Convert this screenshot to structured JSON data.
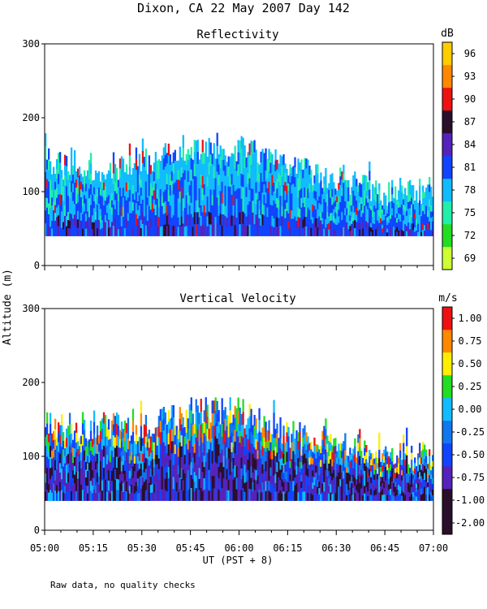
{
  "title": "Dixon, CA 22 May 2007  Day 142",
  "note": "Raw data, no quality checks",
  "xlabel": "UT  (PST + 8)",
  "ylabel": "Altitude (m)",
  "colors": {
    "reflectivity_scale": [
      "#ccff33",
      "#22dd22",
      "#22eeaa",
      "#11bbff",
      "#1144ff",
      "#5522bb",
      "#2a0e2a",
      "#ee1111",
      "#ff8800",
      "#ffcc00"
    ],
    "velocity_scale": [
      "#2a0e2a",
      "#5522bb",
      "#1144ff",
      "#1177ee",
      "#11bbff",
      "#22dd22",
      "#ffee00",
      "#ff8800",
      "#ee1111"
    ]
  },
  "chart_data": [
    {
      "type": "heatmap",
      "title": "Reflectivity",
      "colorbar_unit": "dB",
      "colorbar_ticks": [
        "69",
        "72",
        "75",
        "78",
        "81",
        "84",
        "87",
        "90",
        "93",
        "96"
      ],
      "x_ticks": [
        "05:00",
        "05:15",
        "05:30",
        "05:45",
        "06:00",
        "06:15",
        "06:30",
        "06:45",
        "07:00"
      ],
      "x_range_minutes": [
        0,
        120
      ],
      "y_ticks": [
        0,
        100,
        200,
        300
      ],
      "ylim": [
        0,
        300
      ],
      "data_bottom_m": 40,
      "echo_top_m": [
        {
          "t": 0,
          "top": 160
        },
        {
          "t": 15,
          "top": 150
        },
        {
          "t": 30,
          "top": 160
        },
        {
          "t": 45,
          "top": 180
        },
        {
          "t": 60,
          "top": 180
        },
        {
          "t": 75,
          "top": 150
        },
        {
          "t": 90,
          "top": 140
        },
        {
          "t": 105,
          "top": 120
        },
        {
          "t": 120,
          "top": 120
        }
      ],
      "dominant_range_dB": [
        78,
        84
      ]
    },
    {
      "type": "heatmap",
      "title": "Vertical Velocity",
      "colorbar_unit": "m/s",
      "colorbar_ticks": [
        "-2.00",
        "-1.00",
        "-0.75",
        "-0.50",
        "-0.25",
        "0.00",
        "0.25",
        "0.50",
        "0.75",
        "1.00"
      ],
      "x_ticks": [
        "05:00",
        "05:15",
        "05:30",
        "05:45",
        "06:00",
        "06:15",
        "06:30",
        "06:45",
        "07:00"
      ],
      "x_range_minutes": [
        0,
        120
      ],
      "y_ticks": [
        0,
        100,
        200,
        300
      ],
      "ylim": [
        0,
        300
      ],
      "data_bottom_m": 40,
      "echo_top_m": [
        {
          "t": 0,
          "top": 160
        },
        {
          "t": 15,
          "top": 160
        },
        {
          "t": 30,
          "top": 160
        },
        {
          "t": 45,
          "top": 180
        },
        {
          "t": 60,
          "top": 180
        },
        {
          "t": 75,
          "top": 150
        },
        {
          "t": 90,
          "top": 140
        },
        {
          "t": 105,
          "top": 120
        },
        {
          "t": 120,
          "top": 120
        }
      ],
      "dominant_range_ms": [
        -1.0,
        -0.25
      ]
    }
  ]
}
